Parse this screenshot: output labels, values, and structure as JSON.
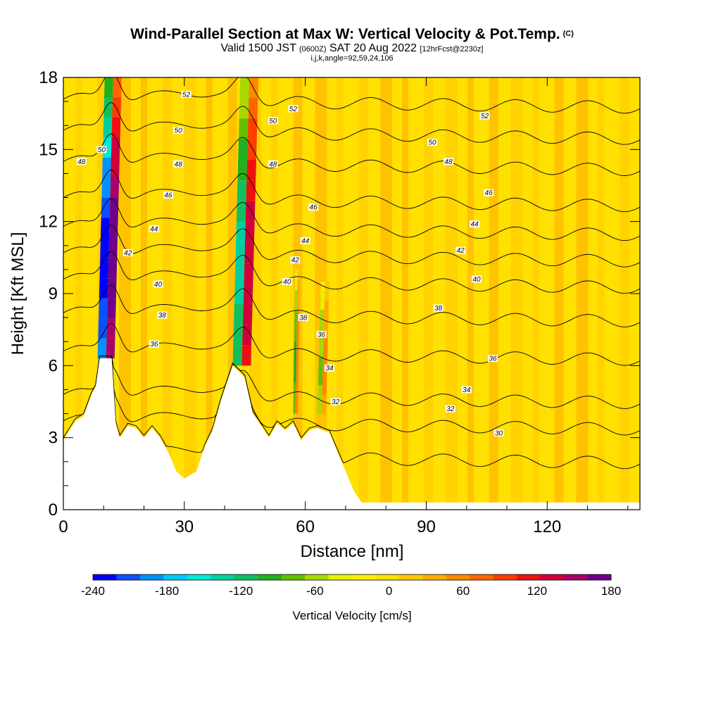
{
  "chart_data": {
    "type": "heatmap",
    "title": "Wind-Parallel Section at Max W: Vertical Velocity & Pot.Temp.",
    "title_mark": "(C)",
    "subtitle_valid": "Valid 1500 JST",
    "subtitle_utc": "(0600Z)",
    "subtitle_date": "SAT 20 Aug 2022",
    "subtitle_fcst": "[12hrFcst@2230z]",
    "subtitle2": "i,j,k,angle=92,59,24,106",
    "xlabel": "Distance [nm]",
    "ylabel": "Height [Kft MSL]",
    "xlim": [
      0,
      143
    ],
    "ylim": [
      0,
      18
    ],
    "x_ticks": [
      "0",
      "30",
      "60",
      "90",
      "120"
    ],
    "x_tick_values": [
      0,
      30,
      60,
      90,
      120
    ],
    "y_ticks": [
      "0",
      "3",
      "6",
      "9",
      "12",
      "15",
      "18"
    ],
    "y_tick_values": [
      0,
      3,
      6,
      9,
      12,
      15,
      18
    ],
    "colorbar": {
      "label": "Vertical Velocity [cm/s]",
      "tick_labels": [
        "-240",
        "-180",
        "-120",
        "-60",
        "0",
        "60",
        "120",
        "180"
      ],
      "tick_values": [
        -240,
        -180,
        -120,
        -60,
        0,
        60,
        120,
        180
      ],
      "min": -240,
      "max": 180,
      "colors": [
        "#0000ff",
        "#0a50ff",
        "#0090ff",
        "#00c8ff",
        "#00e8d8",
        "#00d0a0",
        "#10c060",
        "#20b020",
        "#60c000",
        "#a8d800",
        "#e8f000",
        "#fff000",
        "#ffe000",
        "#ffc800",
        "#ffaa00",
        "#ff8800",
        "#ff6400",
        "#ff3c00",
        "#ee1010",
        "#d0003c",
        "#a8006c",
        "#70008c"
      ]
    },
    "terrain_profile": [
      {
        "x": 0,
        "y": 2.9
      },
      {
        "x": 3,
        "y": 3.7
      },
      {
        "x": 5,
        "y": 3.9
      },
      {
        "x": 7,
        "y": 4.8
      },
      {
        "x": 8,
        "y": 5.1
      },
      {
        "x": 9,
        "y": 6.3
      },
      {
        "x": 12,
        "y": 6.3
      },
      {
        "x": 13,
        "y": 3.6
      },
      {
        "x": 14,
        "y": 3.0
      },
      {
        "x": 16,
        "y": 3.5
      },
      {
        "x": 18,
        "y": 3.4
      },
      {
        "x": 20,
        "y": 3.0
      },
      {
        "x": 22,
        "y": 3.4
      },
      {
        "x": 24,
        "y": 3.0
      },
      {
        "x": 26,
        "y": 2.4
      },
      {
        "x": 28,
        "y": 1.6
      },
      {
        "x": 30,
        "y": 1.3
      },
      {
        "x": 33,
        "y": 1.6
      },
      {
        "x": 35,
        "y": 2.6
      },
      {
        "x": 37,
        "y": 3.3
      },
      {
        "x": 39,
        "y": 4.5
      },
      {
        "x": 41,
        "y": 5.5
      },
      {
        "x": 42,
        "y": 6.0
      },
      {
        "x": 45,
        "y": 5.5
      },
      {
        "x": 47,
        "y": 4.0
      },
      {
        "x": 49,
        "y": 3.5
      },
      {
        "x": 51,
        "y": 3.0
      },
      {
        "x": 53,
        "y": 3.6
      },
      {
        "x": 55,
        "y": 3.3
      },
      {
        "x": 57,
        "y": 3.6
      },
      {
        "x": 59,
        "y": 2.9
      },
      {
        "x": 61,
        "y": 3.3
      },
      {
        "x": 63,
        "y": 3.4
      },
      {
        "x": 66,
        "y": 3.2
      },
      {
        "x": 68,
        "y": 2.4
      },
      {
        "x": 70,
        "y": 1.6
      },
      {
        "x": 72,
        "y": 0.8
      },
      {
        "x": 74,
        "y": 0.3
      },
      {
        "x": 76,
        "y": 0.3
      },
      {
        "x": 143,
        "y": 0.3
      }
    ],
    "theta_contours": [
      {
        "label": "30",
        "base": 2.3
      },
      {
        "label": "32",
        "base": 3.7
      },
      {
        "label": "34",
        "base": 4.8
      },
      {
        "label": "36",
        "base": 6.6
      },
      {
        "label": "38",
        "base": 8.2
      },
      {
        "label": "40",
        "base": 9.6
      },
      {
        "label": "42",
        "base": 10.7
      },
      {
        "label": "44",
        "base": 11.8
      },
      {
        "label": "46",
        "base": 13.0
      },
      {
        "label": "48",
        "base": 14.5
      },
      {
        "label": "50",
        "base": 15.8
      },
      {
        "label": "52",
        "base": 17.1
      }
    ],
    "contour_labels": [
      {
        "text": "52",
        "x": 30.5,
        "y": 17.3
      },
      {
        "text": "52",
        "x": 57.0,
        "y": 16.7
      },
      {
        "text": "52",
        "x": 104.5,
        "y": 16.4
      },
      {
        "text": "50",
        "x": 28.5,
        "y": 15.8
      },
      {
        "text": "50",
        "x": 52.0,
        "y": 16.2
      },
      {
        "text": "50",
        "x": 91.5,
        "y": 15.3
      },
      {
        "text": "50",
        "x": 9.5,
        "y": 15.0
      },
      {
        "text": "48",
        "x": 4.5,
        "y": 14.5
      },
      {
        "text": "48",
        "x": 28.5,
        "y": 14.4
      },
      {
        "text": "48",
        "x": 52.0,
        "y": 14.4
      },
      {
        "text": "48",
        "x": 95.5,
        "y": 14.5
      },
      {
        "text": "46",
        "x": 26.0,
        "y": 13.1
      },
      {
        "text": "46",
        "x": 62.0,
        "y": 12.6
      },
      {
        "text": "46",
        "x": 105.5,
        "y": 13.2
      },
      {
        "text": "44",
        "x": 22.5,
        "y": 11.7
      },
      {
        "text": "44",
        "x": 60.0,
        "y": 11.2
      },
      {
        "text": "44",
        "x": 102.0,
        "y": 11.9
      },
      {
        "text": "42",
        "x": 16.0,
        "y": 10.7
      },
      {
        "text": "42",
        "x": 57.5,
        "y": 10.4
      },
      {
        "text": "42",
        "x": 98.5,
        "y": 10.8
      },
      {
        "text": "40",
        "x": 23.5,
        "y": 9.4
      },
      {
        "text": "40",
        "x": 55.5,
        "y": 9.5
      },
      {
        "text": "40",
        "x": 102.5,
        "y": 9.6
      },
      {
        "text": "38",
        "x": 24.5,
        "y": 8.1
      },
      {
        "text": "38",
        "x": 59.5,
        "y": 8.0
      },
      {
        "text": "38",
        "x": 93.0,
        "y": 8.4
      },
      {
        "text": "36",
        "x": 22.5,
        "y": 6.9
      },
      {
        "text": "36",
        "x": 64.0,
        "y": 7.3
      },
      {
        "text": "36",
        "x": 106.5,
        "y": 6.3
      },
      {
        "text": "34",
        "x": 66.0,
        "y": 5.9
      },
      {
        "text": "34",
        "x": 100.0,
        "y": 5.0
      },
      {
        "text": "32",
        "x": 67.5,
        "y": 4.5
      },
      {
        "text": "32",
        "x": 96.0,
        "y": 4.2
      },
      {
        "text": "30",
        "x": 108.0,
        "y": 3.2
      }
    ],
    "updraft_bands": [
      {
        "x0": 8.5,
        "y0": 6.3,
        "x1": 15.5,
        "y1": 18,
        "w_down": -230,
        "w_up": 175
      },
      {
        "x0": 42.0,
        "y0": 6.0,
        "x1": 49.5,
        "y1": 18,
        "w_down": -130,
        "w_up": 140
      },
      {
        "x0": 57.0,
        "y0": 4.0,
        "x1": 59.0,
        "y1": 10.0,
        "w_down": -90,
        "w_up": 60
      },
      {
        "x0": 63.0,
        "y0": 4.0,
        "x1": 66.5,
        "y1": 9.5,
        "w_down": -70,
        "w_up": 50
      }
    ],
    "background_w": 5
  }
}
